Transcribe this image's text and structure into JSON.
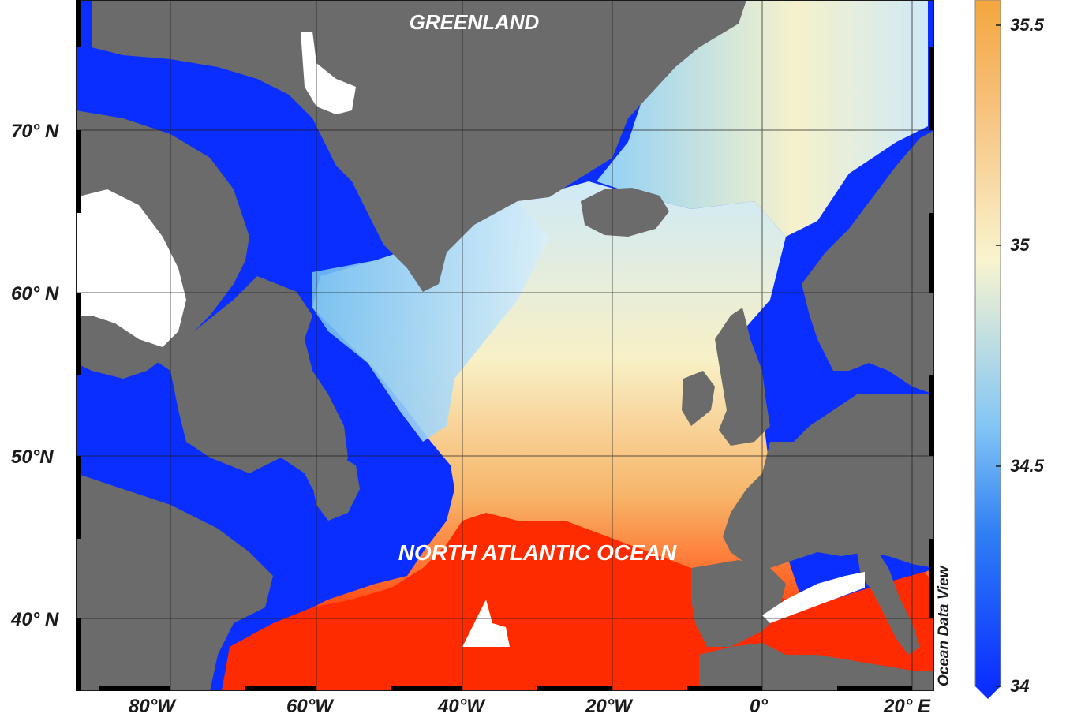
{
  "map": {
    "region_labels": {
      "greenland": "GREENLAND",
      "ocean": "NORTH ATLANTIC OCEAN"
    },
    "lat_labels": [
      "70° N",
      "60° N",
      "50°N",
      "40° N"
    ],
    "lon_labels": [
      "80°W",
      "60°W",
      "40°W",
      "20°W",
      "0°",
      "20° E"
    ],
    "credit": "Ocean Data View"
  },
  "colorbar": {
    "ticks": [
      "35.5",
      "35",
      "34.5",
      "34"
    ],
    "min": 34,
    "max": 35.6,
    "colors": [
      "#0a2eff",
      "#3a8cf7",
      "#b8e8f7",
      "#fbf3c5",
      "#f6b05a",
      "#ff2b00"
    ]
  },
  "colors": {
    "land": "#6b6b6b",
    "fresh": "#0a2eff",
    "saline": "#ff2b00",
    "nodata": "#ffffff"
  }
}
